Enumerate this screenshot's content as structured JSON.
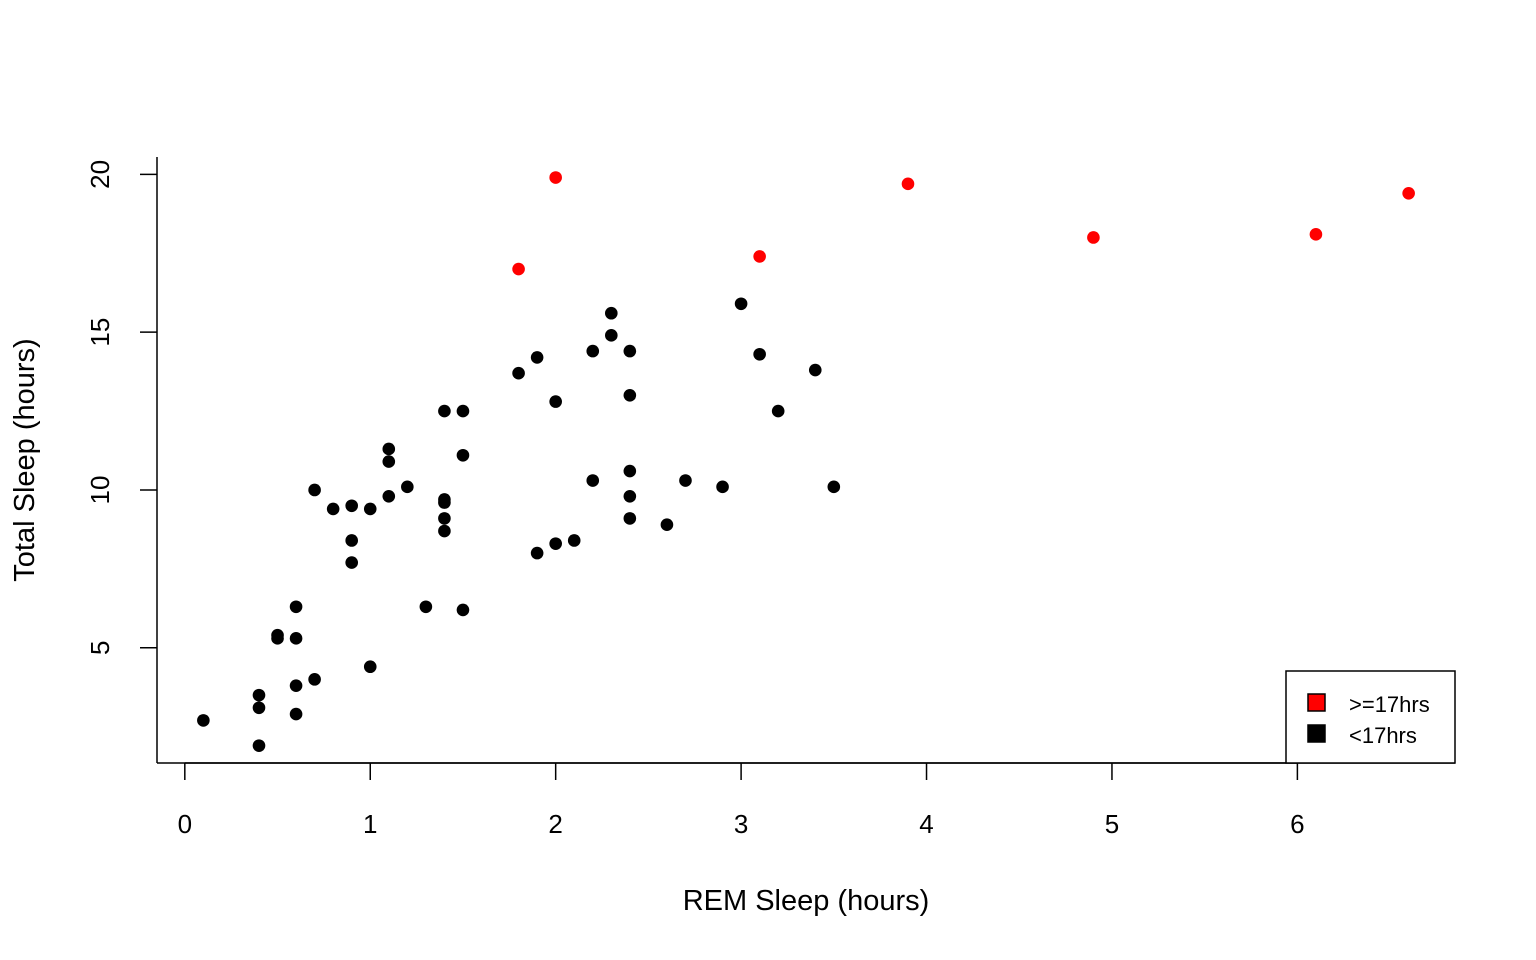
{
  "chart_data": {
    "type": "scatter",
    "title": "",
    "xlabel": "REM Sleep (hours)",
    "ylabel": "Total Sleep (hours)",
    "xlim": [
      -0.15,
      6.85
    ],
    "ylim": [
      1.35,
      20.55
    ],
    "x_ticks": [
      0,
      1,
      2,
      3,
      4,
      5,
      6
    ],
    "y_ticks": [
      5,
      10,
      15,
      20
    ],
    "grid": false,
    "legend_position": "bottom-right",
    "series": [
      {
        "name": ">=17hrs",
        "color": "#ff0000",
        "points": [
          [
            1.8,
            17.0
          ],
          [
            2.0,
            19.9
          ],
          [
            3.1,
            17.4
          ],
          [
            3.9,
            19.7
          ],
          [
            4.9,
            18.0
          ],
          [
            6.1,
            18.1
          ],
          [
            6.6,
            19.4
          ]
        ]
      },
      {
        "name": "<17hrs",
        "color": "#000000",
        "points": [
          [
            0.1,
            2.7
          ],
          [
            0.4,
            3.5
          ],
          [
            0.4,
            3.1
          ],
          [
            0.4,
            1.9
          ],
          [
            0.5,
            5.4
          ],
          [
            0.5,
            5.3
          ],
          [
            0.6,
            6.3
          ],
          [
            0.6,
            5.3
          ],
          [
            0.6,
            3.8
          ],
          [
            0.6,
            2.9
          ],
          [
            0.7,
            10.0
          ],
          [
            0.7,
            4.0
          ],
          [
            0.8,
            9.4
          ],
          [
            0.9,
            9.5
          ],
          [
            0.9,
            8.4
          ],
          [
            0.9,
            7.7
          ],
          [
            1.0,
            9.4
          ],
          [
            1.0,
            4.4
          ],
          [
            1.1,
            11.3
          ],
          [
            1.1,
            10.9
          ],
          [
            1.1,
            9.8
          ],
          [
            1.2,
            10.1
          ],
          [
            1.3,
            6.3
          ],
          [
            1.4,
            12.5
          ],
          [
            1.4,
            9.7
          ],
          [
            1.4,
            9.6
          ],
          [
            1.4,
            9.1
          ],
          [
            1.4,
            8.7
          ],
          [
            1.5,
            12.5
          ],
          [
            1.5,
            11.1
          ],
          [
            1.5,
            6.2
          ],
          [
            1.8,
            13.7
          ],
          [
            1.9,
            14.2
          ],
          [
            1.9,
            8.0
          ],
          [
            2.0,
            12.8
          ],
          [
            2.0,
            8.3
          ],
          [
            2.1,
            8.4
          ],
          [
            2.2,
            14.4
          ],
          [
            2.2,
            10.3
          ],
          [
            2.3,
            15.6
          ],
          [
            2.3,
            14.9
          ],
          [
            2.4,
            14.4
          ],
          [
            2.4,
            13.0
          ],
          [
            2.4,
            10.6
          ],
          [
            2.4,
            9.8
          ],
          [
            2.4,
            9.1
          ],
          [
            2.6,
            8.9
          ],
          [
            2.7,
            10.3
          ],
          [
            2.9,
            10.1
          ],
          [
            3.0,
            15.9
          ],
          [
            3.1,
            14.3
          ],
          [
            3.2,
            12.5
          ],
          [
            3.4,
            13.8
          ],
          [
            3.5,
            10.1
          ]
        ]
      }
    ]
  }
}
